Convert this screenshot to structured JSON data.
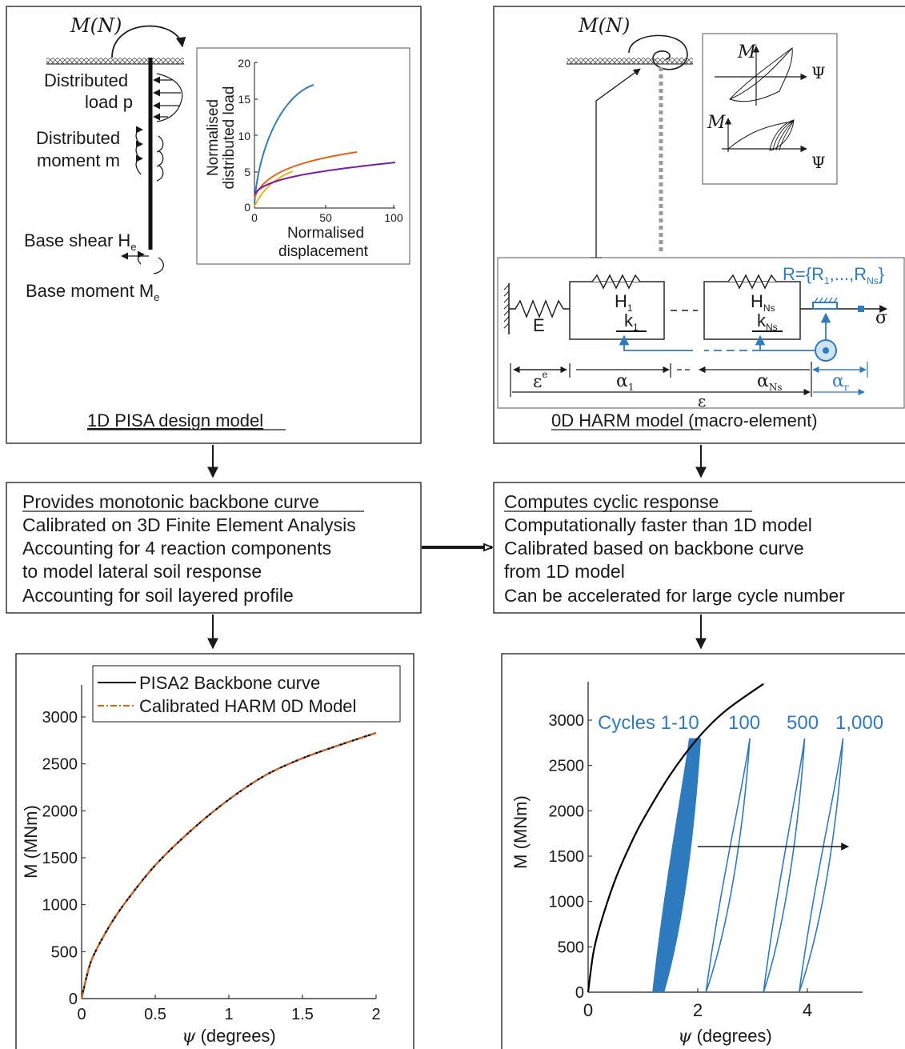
{
  "pisa_panel": {
    "moment_label": "M(N)",
    "distributed_load": [
      "Distributed",
      "load p"
    ],
    "distributed_moment": [
      "Distributed",
      "moment m"
    ],
    "base_shear": "Base shear H",
    "base_shear_sub": "e",
    "base_moment": "Base moment M",
    "base_moment_sub": "e",
    "title": "1D PISA design model",
    "inset": {
      "ylabel": [
        "Normalised",
        "distributed load"
      ],
      "xlabel": [
        "Normalised",
        "displacement"
      ],
      "x_ticks": [
        "0",
        "50",
        "100"
      ],
      "y_ticks": [
        "0",
        "5",
        "10",
        "15",
        "20"
      ]
    }
  },
  "harm_panel": {
    "moment_label": "M(N)",
    "title_underlined": "0D HARM model",
    "title_rest": " (macro-element)",
    "inset_m": "M",
    "inset_psi": "Ψ",
    "E": "E",
    "H1": "H",
    "H1_sub": "1",
    "k1": "k",
    "k1_sub": "1",
    "HNs": "H",
    "HNs_sub": "Ns",
    "kNs": "k",
    "kNs_sub": "Ns",
    "R_label": "R={R",
    "R_sub1": "1",
    "R_mid": ",...,R",
    "R_sub2": "Ns",
    "R_end": "}",
    "sigma": "σ",
    "eps_e": "ε",
    "eps_e_sup": "e",
    "alpha1": "α",
    "alpha1_sub": "1",
    "alphaNs": "α",
    "alphaNs_sub": "Ns",
    "alphar": "α",
    "alphar_sub": "r",
    "eps": "ε"
  },
  "box_left": {
    "heading": "Provides monotonic backbone curve",
    "lines": [
      "Calibrated on 3D Finite Element Analysis",
      "Accounting for 4 reaction components",
      "to model lateral soil response",
      "Accounting for soil layered profile"
    ]
  },
  "box_right": {
    "heading": "Computes cyclic response",
    "lines": [
      "Computationally faster than 1D model",
      "Calibrated based on backbone curve",
      "from 1D model",
      "Can be accelerated for large cycle number"
    ]
  },
  "chart_left": {
    "legend": [
      "PISA2 Backbone curve",
      "Calibrated HARM 0D Model"
    ],
    "ylabel": "M (MNm)",
    "xlabel_sym": "ψ",
    "xlabel_rest": " (degrees)",
    "x_ticks": [
      "0",
      "0.5",
      "1",
      "1.5",
      "2"
    ],
    "y_ticks": [
      "0",
      "500",
      "1000",
      "1500",
      "2000",
      "2500",
      "3000"
    ]
  },
  "chart_right": {
    "cycle_labels": [
      "Cycles 1-10",
      "100",
      "500",
      "1,000"
    ],
    "ylabel": "M (MNm)",
    "xlabel_sym": "ψ",
    "xlabel_rest": " (degrees)",
    "x_ticks": [
      "0",
      "2",
      "4"
    ],
    "y_ticks": [
      "0",
      "500",
      "1000",
      "1500",
      "2000",
      "2500",
      "3000"
    ]
  },
  "chart_data": [
    {
      "type": "line",
      "x_range": [
        0,
        2
      ],
      "ylim": [
        0,
        3400
      ],
      "series": [
        {
          "name": "PISA2 Backbone curve",
          "color": "#000000",
          "x": [
            0,
            0.05,
            0.1,
            0.2,
            0.3,
            0.5,
            0.75,
            1.0,
            1.25,
            1.5,
            1.75,
            2.0
          ],
          "y": [
            0,
            330,
            520,
            800,
            1030,
            1420,
            1800,
            2120,
            2380,
            2560,
            2700,
            2830
          ]
        },
        {
          "name": "Calibrated HARM 0D Model",
          "color": "#e0641c",
          "x": [
            0,
            0.05,
            0.1,
            0.2,
            0.3,
            0.5,
            0.75,
            1.0,
            1.25,
            1.5,
            1.75,
            2.0
          ],
          "y": [
            0,
            330,
            520,
            800,
            1030,
            1420,
            1800,
            2120,
            2380,
            2560,
            2700,
            2830
          ]
        }
      ]
    },
    {
      "type": "line",
      "x_range": [
        0,
        5
      ],
      "ylim": [
        0,
        3400
      ],
      "backbone": {
        "x": [
          0,
          0.1,
          0.25,
          0.5,
          0.75,
          1.0,
          1.5,
          2.0,
          2.5,
          3.2
        ],
        "y": [
          0,
          450,
          800,
          1250,
          1600,
          1900,
          2400,
          2800,
          3100,
          3400
        ]
      },
      "cycle_loops": [
        {
          "label": "Cycles 1-10",
          "psi_min": [
            1.18,
            1.38
          ],
          "psi_max": [
            1.85,
            2.05
          ],
          "m_max": 2800
        },
        {
          "label": "100",
          "psi_min": 2.15,
          "psi_max": 2.95,
          "m_max": 2800
        },
        {
          "label": "500",
          "psi_min": 3.2,
          "psi_max": 3.95,
          "m_max": 2800
        },
        {
          "label": "1,000",
          "psi_min": 3.85,
          "psi_max": 4.65,
          "m_max": 2800
        }
      ]
    }
  ]
}
